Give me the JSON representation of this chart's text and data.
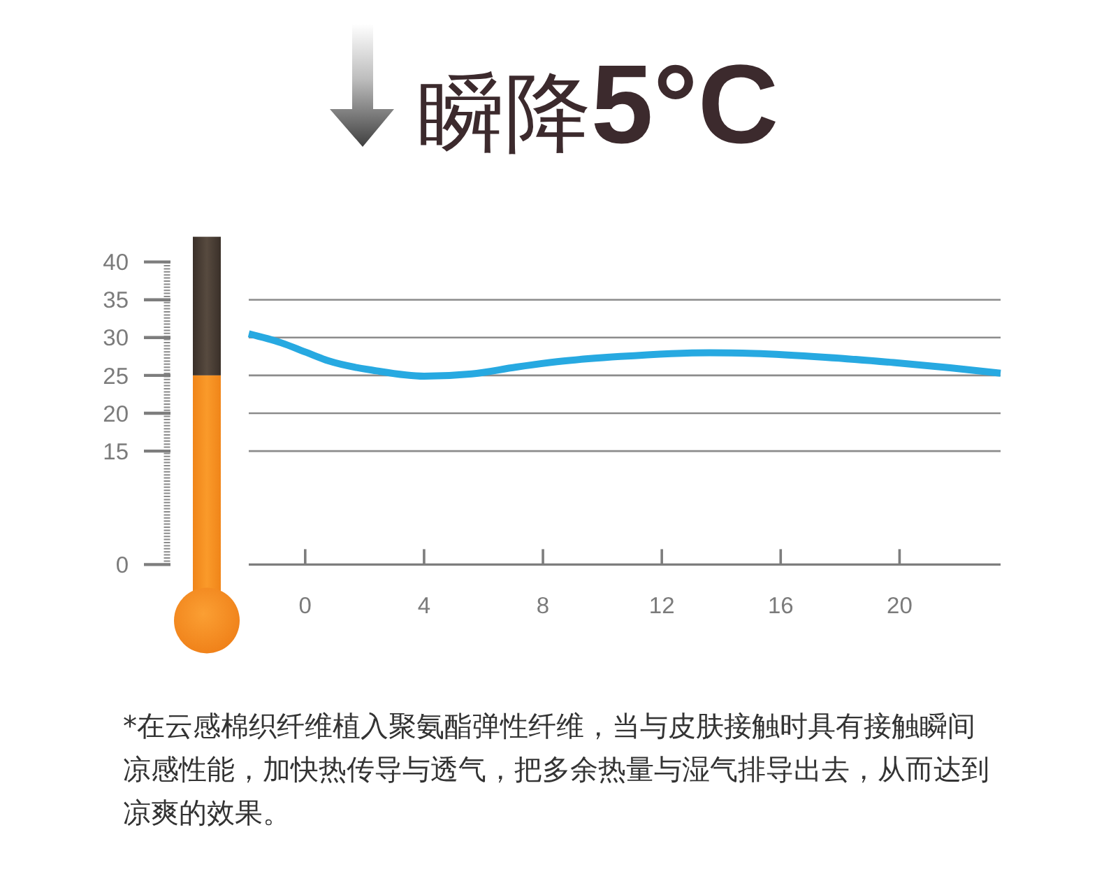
{
  "chart_data": {
    "type": "line",
    "title": "瞬降5°C",
    "annotations": [
      "*在云感棉织纤维植入聚氨酯弹性纤维，当与皮肤接触时具有接触瞬间凉感性能，加快热传导与透气，把多余热量与湿气排导出去，从而达到凉爽的效果。"
    ],
    "x": [
      -1.9,
      -0.8,
      0,
      0.8,
      2.4,
      4.0,
      5.6,
      7.1,
      8.7,
      10.6,
      13.6,
      15.1,
      17.5,
      19.8,
      21.7,
      23.4
    ],
    "values": [
      30.5,
      29.3,
      28.1,
      26.9,
      25.6,
      24.9,
      25.2,
      26.1,
      26.9,
      27.5,
      28.0,
      27.9,
      27.4,
      26.7,
      26.0,
      25.3
    ],
    "color": "#27a9e1",
    "xlim": [
      -1.9,
      23.4
    ],
    "xticks": [
      0,
      4,
      8,
      12,
      16,
      20
    ],
    "ylim": [
      0,
      40
    ],
    "yticks": [
      0,
      15,
      20,
      25,
      30,
      35,
      40
    ],
    "grid": "y"
  }
}
